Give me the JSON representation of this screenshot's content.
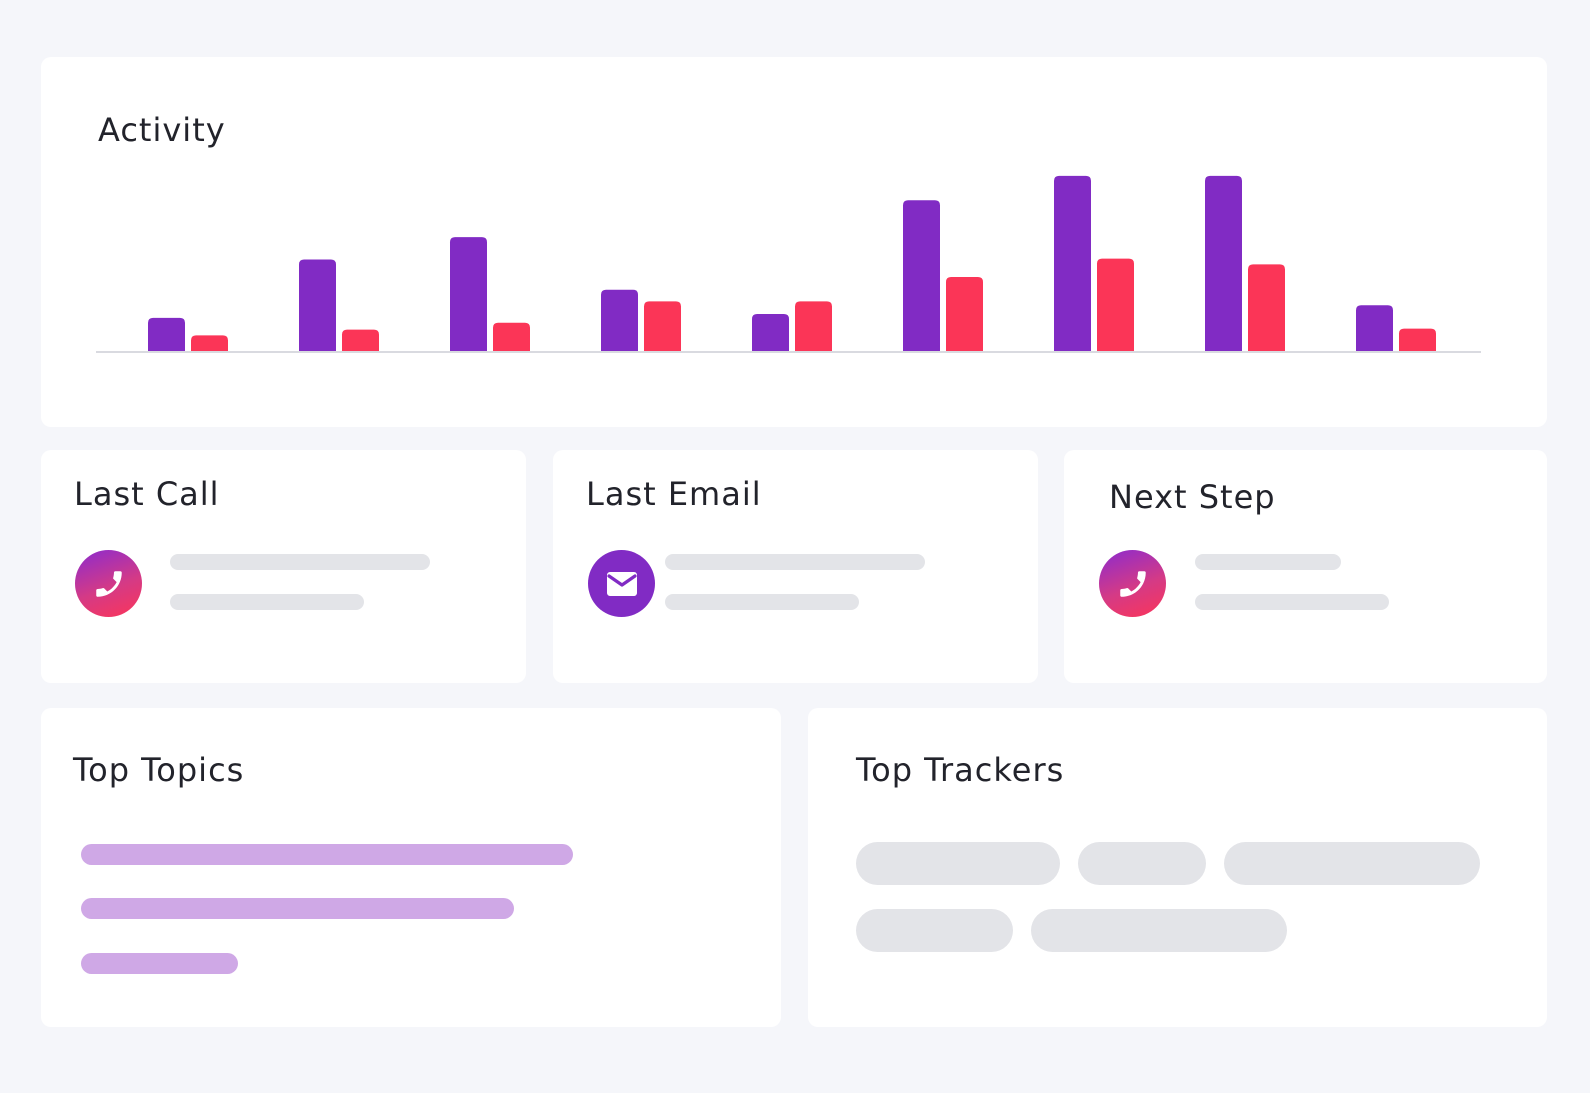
{
  "activity": {
    "title": "Activity"
  },
  "chart_data": {
    "type": "bar",
    "categories": [
      "",
      "",
      "",
      "",
      "",
      "",
      "",
      "",
      ""
    ],
    "series": [
      {
        "values": [
          34,
          94,
          117,
          63,
          38,
          155,
          180,
          180,
          47
        ]
      },
      {
        "values": [
          16,
          22,
          29,
          51,
          51,
          76,
          95,
          89,
          23
        ]
      }
    ],
    "ylim": [
      0,
      185
    ],
    "grid": false,
    "legend": "none"
  },
  "colors": {
    "series_1": "#812bc4",
    "series_2": "#fb3557",
    "baseline": "#d9dae0",
    "topic_bar": "#cfa8e6",
    "skeleton": "#e3e4e8"
  },
  "last_call": {
    "title": "Last Call",
    "icon": "phone-icon"
  },
  "last_email": {
    "title": "Last Email",
    "icon": "mail-icon"
  },
  "next_step": {
    "title": "Next Step",
    "icon": "phone-icon"
  },
  "top_topics": {
    "title": "Top Topics",
    "bar_levels": [
      1.0,
      0.88,
      0.32
    ]
  },
  "top_trackers": {
    "title": "Top Trackers"
  }
}
